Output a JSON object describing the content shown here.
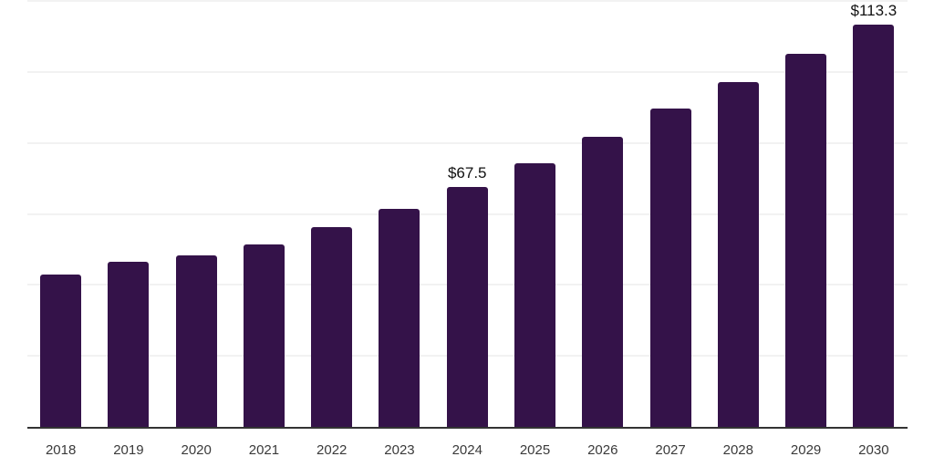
{
  "chart_data": {
    "type": "bar",
    "title": "",
    "xlabel": "",
    "ylabel": "",
    "categories": [
      "2018",
      "2019",
      "2020",
      "2021",
      "2022",
      "2023",
      "2024",
      "2025",
      "2026",
      "2027",
      "2028",
      "2029",
      "2030"
    ],
    "values": [
      43.0,
      46.4,
      48.4,
      51.5,
      56.3,
      61.3,
      67.5,
      74.2,
      81.7,
      89.6,
      97.1,
      105.1,
      113.3
    ],
    "data_labels": [
      {
        "category": "2024",
        "text": "$67.5"
      },
      {
        "category": "2030",
        "text": "$113.3"
      }
    ],
    "ylim": [
      0,
      120
    ],
    "grid_step": 20,
    "grid": "on",
    "legend": "none",
    "colors": {
      "bar": "#341249",
      "grid_line": "#F2F2F2",
      "axis_line": "#333333",
      "tick_label": "#3A3A3A",
      "data_label": "#111111",
      "background": "#FFFFFF"
    }
  }
}
